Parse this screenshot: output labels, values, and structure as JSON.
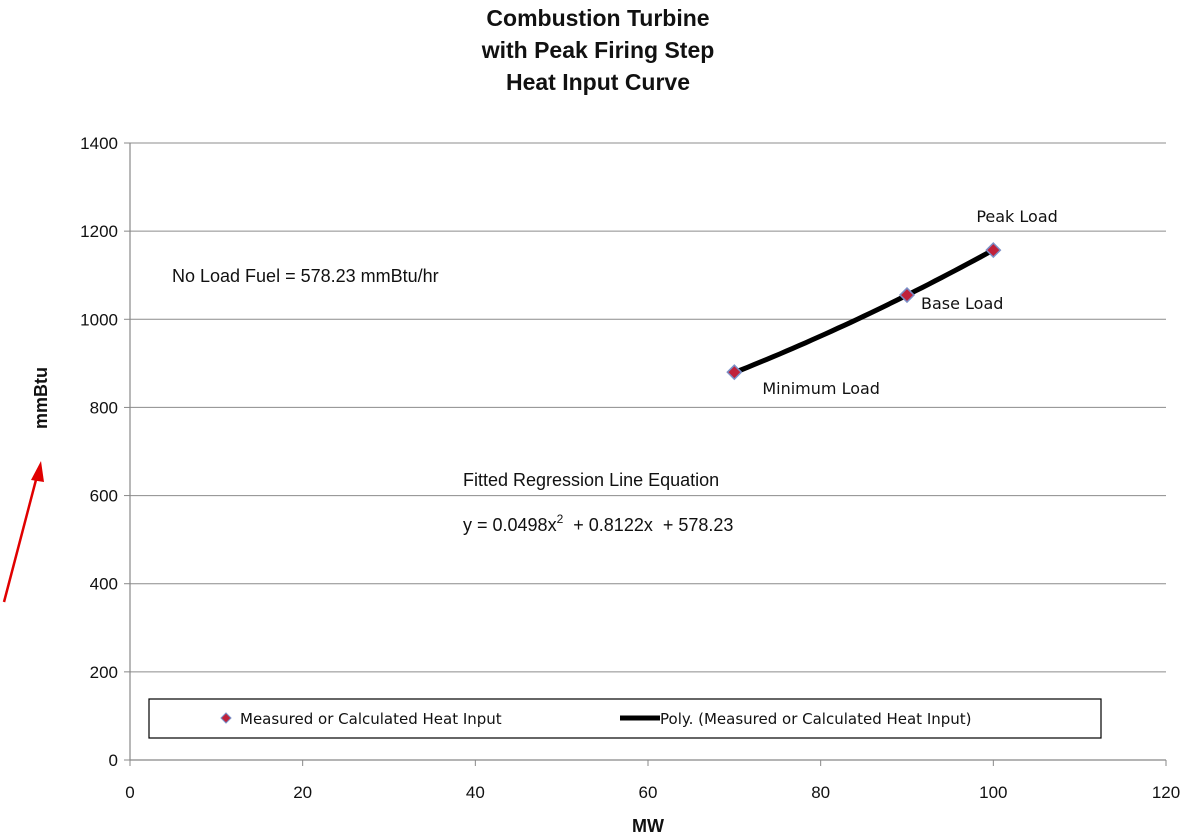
{
  "chart_data": {
    "type": "scatter",
    "title_lines": [
      "Combustion Turbine",
      "with Peak Firing Step",
      "Heat Input Curve"
    ],
    "xlabel": "MW",
    "ylabel": "mmBtu",
    "xlim": [
      0,
      120
    ],
    "ylim": [
      0,
      1400
    ],
    "x_ticks": [
      0,
      20,
      40,
      60,
      80,
      100,
      120
    ],
    "y_ticks": [
      0,
      200,
      400,
      600,
      800,
      1000,
      1200,
      1400
    ],
    "grid": "horizontal",
    "series": [
      {
        "name": "Measured or Calculated Heat Input",
        "kind": "markers",
        "marker_color": "#c0213a",
        "marker_edge": "#7a8fc7",
        "x": [
          70,
          90,
          100
        ],
        "y": [
          880,
          1055,
          1157
        ],
        "point_labels": [
          "Minimum Load",
          "Base Load",
          "Peak Load"
        ]
      },
      {
        "name": "Poly. (Measured or Calculated Heat Input)",
        "kind": "trendline",
        "line_color": "#000000",
        "coefficients": {
          "a2": 0.0498,
          "a1": 0.8122,
          "a0": 578.23
        },
        "x_range": [
          70,
          100
        ]
      }
    ],
    "annotations": [
      "No Load Fuel = 578.23 mmBtu/hr",
      "Fitted Regression Line Equation"
    ],
    "equation": {
      "prefix": "y = 0.0498x",
      "sup": "2",
      "suffix": "  + 0.8122x  + 578.23"
    },
    "legend_placement": "bottom"
  },
  "arrow_color": "#e00000"
}
